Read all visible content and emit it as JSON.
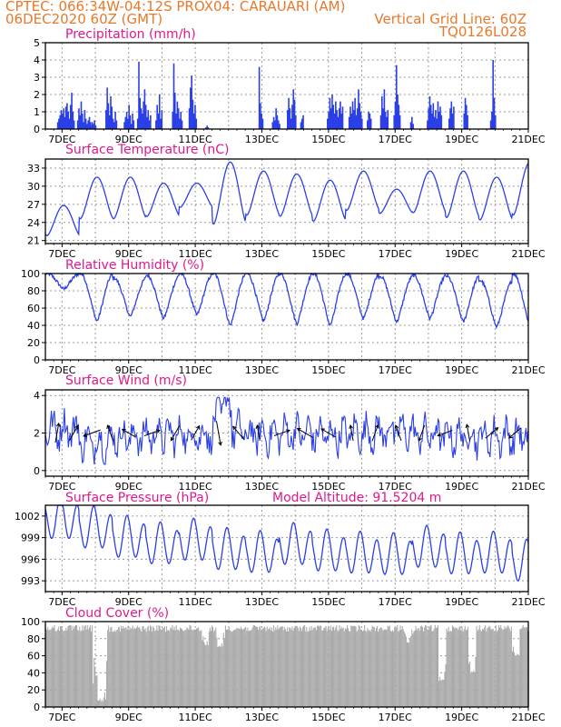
{
  "header": {
    "line1_left": "CPTEC:   066:34W-04:12S   PROX04: CARAUARI (AM)",
    "line2_left": "06DEC2020 60Z (GMT)",
    "line2_right": "Vertical Grid Line: 60Z",
    "line3_right": "TQ0126L028"
  },
  "colors": {
    "header": "#e8792b",
    "title": "#e0198c",
    "series": "#2b3fe8",
    "cloud": "#a9a9a9",
    "grid": "#9a9a9a"
  },
  "x_axis": {
    "date_ticks": [
      "7DEC",
      "9DEC",
      "11DEC",
      "13DEC",
      "15DEC",
      "17DEC",
      "19DEC",
      "21DEC"
    ],
    "day_start": 6.5,
    "day_end": 21
  },
  "chart_data": [
    {
      "id": "precip",
      "type": "bar",
      "title": "Precipitation (mm/h)",
      "ylim": [
        0,
        5
      ],
      "yticks": [
        0,
        1,
        2,
        3,
        4,
        5
      ],
      "xlabel": "",
      "ylabel": "",
      "bar_groups": [
        {
          "x": 6.85,
          "values": [
            0.4,
            0.6,
            0.8,
            1.1,
            0.9,
            1.2,
            0.7,
            1.3,
            1.5,
            1.0,
            0.6,
            1.4,
            2.1,
            1.0,
            0.5
          ]
        },
        {
          "x": 7.45,
          "values": [
            0.5,
            1.2,
            0.8,
            1.6,
            0.9,
            0.4,
            1.1,
            0.6,
            0.3,
            0.5,
            0.7,
            0.4
          ]
        },
        {
          "x": 7.85,
          "values": [
            0.2,
            0.4,
            0.3,
            0.5,
            0.2
          ]
        },
        {
          "x": 8.3,
          "values": [
            1.1,
            2.4,
            1.5,
            0.8,
            1.9,
            1.3,
            0.6,
            0.4,
            1.0,
            0.5
          ]
        },
        {
          "x": 8.85,
          "values": [
            0.4,
            0.7,
            1.0,
            0.6,
            1.4,
            0.8,
            0.3,
            0.9,
            0.5
          ]
        },
        {
          "x": 9.25,
          "values": [
            0.6,
            3.9,
            1.8,
            1.2,
            0.9,
            1.6,
            2.3,
            1.4,
            0.7,
            1.1,
            0.5,
            0.8
          ]
        },
        {
          "x": 9.8,
          "values": [
            0.5,
            1.4,
            0.9,
            2.0,
            0.6,
            1.1
          ]
        },
        {
          "x": 10.3,
          "values": [
            1.0,
            3.8,
            2.1,
            0.9,
            1.6,
            1.2,
            0.6,
            1.0,
            0.5
          ]
        },
        {
          "x": 10.8,
          "values": [
            1.2,
            2.4,
            3.1,
            1.7,
            0.9,
            1.4,
            0.6
          ]
        },
        {
          "x": 11.3,
          "values": [
            0.1,
            0.2,
            0.1
          ]
        },
        {
          "x": 12.9,
          "values": [
            3.6,
            1.5,
            0.9,
            0.6
          ]
        },
        {
          "x": 13.3,
          "values": [
            0.4,
            0.7,
            0.5,
            1.2,
            0.8,
            0.5,
            0.3
          ]
        },
        {
          "x": 13.75,
          "values": [
            1.1,
            1.8,
            1.2,
            0.6,
            1.4,
            2.3,
            1.7,
            0.8
          ]
        },
        {
          "x": 14.15,
          "values": [
            0.4,
            0.6,
            0.8
          ]
        },
        {
          "x": 14.95,
          "values": [
            0.6,
            1.0,
            1.8,
            1.2,
            2.0,
            1.4,
            0.9,
            1.6,
            1.1,
            0.7,
            1.2,
            1.6,
            0.9,
            1.3
          ]
        },
        {
          "x": 15.6,
          "values": [
            0.7,
            1.3,
            0.9,
            1.6,
            1.1,
            1.8,
            0.8,
            1.2,
            2.3,
            1.5,
            1.0,
            0.6
          ]
        },
        {
          "x": 16.15,
          "values": [
            0.5,
            1.0,
            0.9,
            0.6
          ]
        },
        {
          "x": 16.55,
          "values": [
            0.8,
            1.9,
            1.2,
            2.3,
            1.0,
            0.7,
            1.1
          ]
        },
        {
          "x": 16.95,
          "values": [
            0.8,
            1.6,
            3.7,
            2.0,
            1.4,
            0.8
          ]
        },
        {
          "x": 17.45,
          "values": [
            0.4,
            0.7,
            0.3
          ]
        },
        {
          "x": 17.95,
          "values": [
            0.5,
            1.2,
            1.9,
            1.4,
            0.9,
            1.5,
            0.7,
            1.1,
            0.6,
            1.6,
            1.0,
            1.3,
            0.8
          ]
        },
        {
          "x": 18.6,
          "values": [
            0.6,
            1.2,
            1.6,
            0.9,
            1.3
          ]
        },
        {
          "x": 19.05,
          "values": [
            0.9,
            1.8,
            1.4,
            0.8
          ]
        },
        {
          "x": 19.85,
          "values": [
            0.5,
            1.0,
            4.0,
            1.8,
            0.8
          ]
        }
      ]
    },
    {
      "id": "temp",
      "type": "line",
      "title": "Surface Temperature (nC)",
      "ylim": [
        20.5,
        34.5
      ],
      "yticks": [
        21,
        24,
        27,
        30,
        33
      ],
      "xlabel": "",
      "ylabel": "",
      "series": [
        {
          "daily_min": [
            21.8,
            24.6,
            24.6,
            25.0,
            26.5,
            23.7,
            25.2,
            25.0,
            24.2,
            26.0,
            25.5,
            25.6,
            24.8,
            24.4,
            25.2
          ],
          "daily_max": [
            26.8,
            31.5,
            31.5,
            30.5,
            30.5,
            34.0,
            32.5,
            32.0,
            31.0,
            32.5,
            29.5,
            32.5,
            32.5,
            31.5,
            34.0
          ]
        }
      ]
    },
    {
      "id": "rh",
      "type": "line",
      "title": "Relative Humidity (%)",
      "ylim": [
        0,
        100
      ],
      "yticks": [
        0,
        20,
        40,
        60,
        80,
        100
      ],
      "xlabel": "",
      "ylabel": "",
      "series": [
        {
          "daily_min": [
            82,
            45,
            50,
            48,
            52,
            40,
            45,
            42,
            40,
            48,
            44,
            48,
            44,
            38,
            40
          ],
          "daily_max": [
            100,
            100,
            95,
            98,
            100,
            100,
            100,
            100,
            100,
            100,
            97,
            98,
            97,
            92,
            100
          ]
        }
      ]
    },
    {
      "id": "wind",
      "type": "line",
      "title": "Surface Wind (m/s)",
      "ylim": [
        -0.3,
        4.3
      ],
      "yticks": [
        0,
        2,
        4
      ],
      "xlabel": "",
      "ylabel": "",
      "series": [
        {
          "daily_mean": [
            2.2,
            1.5,
            1.8,
            1.9,
            1.9,
            2.1,
            1.9,
            2.0,
            1.9,
            2.0,
            2.1,
            1.9,
            1.8,
            1.8,
            1.8,
            1.7
          ]
        }
      ],
      "vectors": [
        {
          "day": 6.85,
          "speed": 2.4,
          "dir": 80
        },
        {
          "day": 7.35,
          "speed": 2.1,
          "dir": 60
        },
        {
          "day": 7.9,
          "speed": 2.2,
          "dir": 200
        },
        {
          "day": 8.45,
          "speed": 2.0,
          "dir": 110
        },
        {
          "day": 9.0,
          "speed": 1.8,
          "dir": 150
        },
        {
          "day": 9.7,
          "speed": 2.0,
          "dir": 20
        },
        {
          "day": 10.4,
          "speed": 2.1,
          "dir": 240
        },
        {
          "day": 11.0,
          "speed": 2.0,
          "dir": 60
        },
        {
          "day": 11.7,
          "speed": 3.0,
          "dir": 280
        },
        {
          "day": 12.3,
          "speed": 2.1,
          "dir": 130
        },
        {
          "day": 12.9,
          "speed": 1.9,
          "dir": 100
        },
        {
          "day": 13.6,
          "speed": 2.0,
          "dir": 20
        },
        {
          "day": 14.3,
          "speed": 2.2,
          "dir": 150
        },
        {
          "day": 15.0,
          "speed": 2.0,
          "dir": 150
        },
        {
          "day": 15.7,
          "speed": 1.9,
          "dir": 100
        },
        {
          "day": 16.4,
          "speed": 2.1,
          "dir": 70
        },
        {
          "day": 17.1,
          "speed": 2.0,
          "dir": 110
        },
        {
          "day": 17.8,
          "speed": 2.0,
          "dir": 250
        },
        {
          "day": 18.5,
          "speed": 1.9,
          "dir": 200
        },
        {
          "day": 19.2,
          "speed": 2.1,
          "dir": 100
        },
        {
          "day": 19.9,
          "speed": 2.0,
          "dir": 40
        },
        {
          "day": 20.6,
          "speed": 1.9,
          "dir": 220
        }
      ]
    },
    {
      "id": "pres",
      "type": "line",
      "title": "Surface Pressure (hPa)",
      "annotation": "Model Altitude: 91.5204 m",
      "ylim": [
        991.5,
        1003.5
      ],
      "yticks": [
        993,
        996,
        999,
        1002
      ],
      "xlabel": "",
      "ylabel": "",
      "series": [
        {
          "daily_mean": [
            1001.5,
            1000.2,
            998.9,
            998.0,
            998.5,
            997.2,
            996.8,
            997.9,
            997.0,
            996.7,
            996.5,
            997.5,
            996.6,
            996.7,
            995.6,
            995.2
          ]
        }
      ]
    },
    {
      "id": "cloud",
      "type": "bar",
      "title": "Cloud Cover (%)",
      "ylim": [
        0,
        100
      ],
      "yticks": [
        0,
        20,
        40,
        60,
        80,
        100
      ],
      "xlabel": "",
      "ylabel": "",
      "dips": [
        {
          "day": 8.2,
          "value": 5
        },
        {
          "day": 11.3,
          "value": 72
        },
        {
          "day": 11.75,
          "value": 70
        },
        {
          "day": 17.4,
          "value": 75
        },
        {
          "day": 18.4,
          "value": 30
        },
        {
          "day": 19.3,
          "value": 40
        },
        {
          "day": 20.6,
          "value": 60
        }
      ],
      "baseline": 96
    }
  ]
}
